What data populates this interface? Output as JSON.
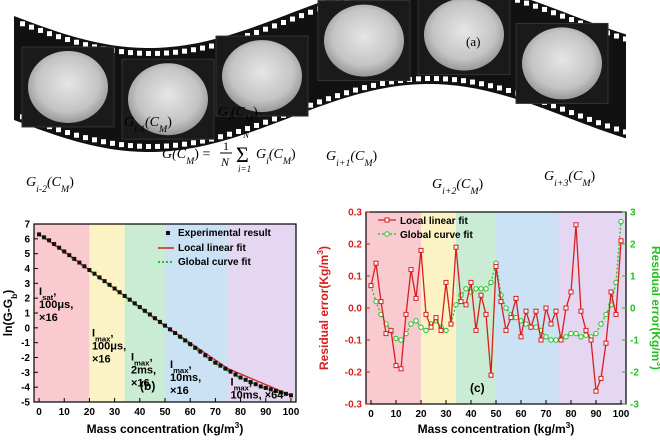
{
  "film": {
    "panel_label": "(a)",
    "frame_labels": [
      "G",
      "G",
      "G",
      "G",
      "G",
      "G",
      "G"
    ],
    "frame_subs": [
      "i-2",
      "i-1",
      "i",
      "i+1",
      "i+2",
      "i+3",
      ""
    ],
    "frame_args": [
      "(C",
      "M",
      ")"
    ],
    "formula": {
      "lhs": "G(C",
      "lhs_sub": "M",
      "eq": ") =",
      "frac_num": "1",
      "frac_den": "N",
      "sum_top": "N",
      "sum_bottom": "i=1",
      "rhs": "G",
      "rhs_sub": "i",
      "rhs_arg": "(C",
      "rhs_arg_sub": "M",
      "rhs_close": ")"
    }
  },
  "chart_data": [
    {
      "type": "scatter",
      "panel_label": "(b)",
      "xlabel": "Mass concentration (kg/m",
      "xlabel_sup": "3",
      "xlabel_end": ")",
      "ylabel": "ln(G-G",
      "ylabel_sub": "b",
      "ylabel_end": ")",
      "xlim": [
        -2,
        102
      ],
      "ylim": [
        -5,
        7
      ],
      "xticks": [
        "0",
        "10",
        "20",
        "30",
        "40",
        "50",
        "60",
        "70",
        "80",
        "90",
        "100"
      ],
      "yticks": [
        "-5",
        "-4",
        "-3",
        "-2",
        "-1",
        "0",
        "1",
        "2",
        "3",
        "4",
        "5",
        "6",
        "7"
      ],
      "legend": [
        "Experimental result",
        "Local linear fit",
        "Global curve fit"
      ],
      "bands": [
        {
          "x0": -2,
          "x1": 20,
          "color": "#f7b8c0"
        },
        {
          "x0": 20,
          "x1": 34,
          "color": "#fbefb0"
        },
        {
          "x0": 34,
          "x1": 50,
          "color": "#b9e6c6"
        },
        {
          "x0": 50,
          "x1": 75,
          "color": "#b9d8f2"
        },
        {
          "x0": 75,
          "x1": 102,
          "color": "#dcc8ec"
        }
      ],
      "annotations": [
        {
          "x": 0,
          "y": 2.2,
          "lines": [
            [
              "I",
              "sat",
              ","
            ],
            [
              "100",
              "",
              "μs,"
            ],
            [
              "×16",
              "",
              ""
            ]
          ]
        },
        {
          "x": 21,
          "y": -0.6,
          "lines": [
            [
              "I",
              "max",
              ","
            ],
            [
              "100",
              "",
              "μs,"
            ],
            [
              "×16",
              "",
              ""
            ]
          ]
        },
        {
          "x": 36.5,
          "y": -2.2,
          "lines": [
            [
              "I",
              "max",
              ","
            ],
            [
              "2ms,",
              "",
              ""
            ],
            [
              "×16",
              "",
              ""
            ]
          ]
        },
        {
          "x": 52,
          "y": -2.7,
          "lines": [
            [
              "I",
              "max",
              ","
            ],
            [
              "10ms,",
              "",
              ""
            ],
            [
              "×16",
              "",
              ""
            ]
          ]
        },
        {
          "x": 76,
          "y": -3.9,
          "lines": [
            [
              "I",
              "max",
              ","
            ],
            [
              "10ms, ×64",
              "",
              ""
            ]
          ]
        }
      ],
      "series": [
        {
          "name": "Experimental result",
          "x": [
            0,
            2,
            4,
            6,
            8,
            10,
            12,
            14,
            16,
            18,
            20,
            22,
            24,
            26,
            28,
            30,
            32,
            34,
            36,
            38,
            40,
            42,
            44,
            46,
            48,
            50,
            52,
            54,
            56,
            58,
            60,
            62,
            64,
            66,
            68,
            70,
            72,
            74,
            76,
            78,
            80,
            82,
            84,
            86,
            88,
            90,
            92,
            94,
            96,
            98,
            100
          ],
          "y": [
            6.3,
            6.1,
            5.9,
            5.65,
            5.4,
            5.15,
            4.9,
            4.65,
            4.4,
            4.15,
            3.9,
            3.65,
            3.4,
            3.15,
            2.9,
            2.65,
            2.4,
            2.15,
            1.9,
            1.65,
            1.4,
            1.15,
            0.9,
            0.65,
            0.4,
            0.15,
            -0.1,
            -0.35,
            -0.6,
            -0.85,
            -1.1,
            -1.35,
            -1.6,
            -1.85,
            -2.1,
            -2.35,
            -2.55,
            -2.75,
            -2.95,
            -3.15,
            -3.35,
            -3.5,
            -3.65,
            -3.8,
            -3.95,
            -4.05,
            -4.15,
            -4.25,
            -4.35,
            -4.45,
            -4.55
          ]
        },
        {
          "name": "Local linear fit",
          "x": [
            0,
            10,
            20,
            34,
            50,
            75,
            100
          ],
          "y": [
            6.3,
            5.15,
            3.9,
            2.15,
            0.15,
            -2.75,
            -4.55
          ]
        },
        {
          "name": "Global curve fit",
          "x": [
            0,
            10,
            20,
            30,
            40,
            50,
            60,
            70,
            80,
            90,
            100
          ],
          "y": [
            6.35,
            5.1,
            3.85,
            2.6,
            1.35,
            0.1,
            -1.15,
            -2.4,
            -3.4,
            -4.1,
            -4.6
          ]
        }
      ]
    },
    {
      "type": "line",
      "panel_label": "(c)",
      "xlabel": "Mass concentration (kg/m",
      "xlabel_sup": "3",
      "xlabel_end": ")",
      "ylabel_left": "Residual error(Kg/m",
      "ylabel_left_sup": "3",
      "ylabel_left_end": ")",
      "ylabel_right": "Residual error(Kg/m",
      "ylabel_right_sup": "3",
      "ylabel_right_end": ")",
      "xlim": [
        -2,
        102
      ],
      "ylim_left": [
        -0.3,
        0.3
      ],
      "ylim_right": [
        -3,
        3
      ],
      "xticks": [
        "0",
        "10",
        "20",
        "30",
        "40",
        "50",
        "60",
        "70",
        "80",
        "90",
        "100"
      ],
      "yticks_left": [
        "-0.3",
        "-0.2",
        "-0.1",
        "0.0",
        "0.1",
        "0.2",
        "0.3"
      ],
      "yticks_right": [
        "-3",
        "-2",
        "-1",
        "0",
        "1",
        "2",
        "3"
      ],
      "legend": [
        "Local linear fit",
        "Global curve fit"
      ],
      "bands": [
        {
          "x0": -2,
          "x1": 20,
          "color": "#f7b8c0"
        },
        {
          "x0": 20,
          "x1": 34,
          "color": "#fbefb0"
        },
        {
          "x0": 34,
          "x1": 50,
          "color": "#b9e6c6"
        },
        {
          "x0": 50,
          "x1": 75,
          "color": "#b9d8f2"
        },
        {
          "x0": 75,
          "x1": 102,
          "color": "#dcc8ec"
        }
      ],
      "series": [
        {
          "name": "Local linear fit",
          "axis": "left",
          "x": [
            0,
            2,
            4,
            6,
            8,
            10,
            12,
            14,
            16,
            18,
            20,
            22,
            24,
            26,
            28,
            30,
            32,
            34,
            36,
            38,
            40,
            42,
            44,
            46,
            48,
            50,
            52,
            54,
            56,
            58,
            60,
            62,
            64,
            66,
            68,
            70,
            72,
            74,
            76,
            78,
            80,
            82,
            84,
            86,
            88,
            90,
            92,
            94,
            96,
            98,
            100
          ],
          "y": [
            0.07,
            0.14,
            0.02,
            -0.08,
            -0.07,
            -0.18,
            -0.19,
            -0.02,
            0.12,
            0.03,
            0.18,
            -0.02,
            -0.06,
            -0.03,
            -0.07,
            0.08,
            -0.05,
            0.19,
            0.02,
            0.01,
            0.08,
            -0.07,
            0.04,
            -0.02,
            -0.21,
            0.13,
            0.02,
            -0.07,
            -0.03,
            0.03,
            -0.09,
            -0.01,
            -0.06,
            -0.01,
            -0.1,
            0.0,
            -0.05,
            -0.01,
            -0.1,
            0.0,
            0.05,
            0.26,
            -0.01,
            -0.07,
            -0.1,
            -0.26,
            -0.22,
            -0.11,
            0.05,
            -0.02,
            0.21
          ]
        },
        {
          "name": "Global curve fit",
          "axis": "right",
          "x": [
            0,
            2,
            4,
            6,
            8,
            10,
            12,
            14,
            16,
            18,
            20,
            22,
            24,
            26,
            28,
            30,
            32,
            34,
            36,
            38,
            40,
            42,
            44,
            46,
            48,
            50,
            52,
            54,
            56,
            58,
            60,
            62,
            64,
            66,
            68,
            70,
            72,
            74,
            76,
            78,
            80,
            82,
            84,
            86,
            88,
            90,
            92,
            94,
            96,
            98,
            100
          ],
          "y": [
            0.7,
            0.2,
            -0.2,
            -0.5,
            -0.7,
            -0.95,
            -1.0,
            -0.8,
            -0.5,
            -0.4,
            -0.6,
            -0.7,
            -0.5,
            -0.4,
            -0.6,
            -0.7,
            -0.5,
            0.1,
            0.4,
            0.6,
            0.5,
            0.6,
            0.6,
            0.6,
            0.8,
            1.4,
            0.4,
            0.0,
            -0.2,
            -0.3,
            -0.4,
            -0.5,
            -0.6,
            -0.6,
            -0.7,
            -0.9,
            -1.0,
            -1.0,
            -0.95,
            -0.9,
            -0.8,
            -0.8,
            -0.9,
            -0.85,
            -0.9,
            -0.8,
            -0.5,
            -0.2,
            0.1,
            0.8,
            2.7
          ]
        }
      ]
    }
  ],
  "colors": {
    "red": "#d81e1e",
    "green": "#22c022",
    "frame_bg": "#111111"
  }
}
